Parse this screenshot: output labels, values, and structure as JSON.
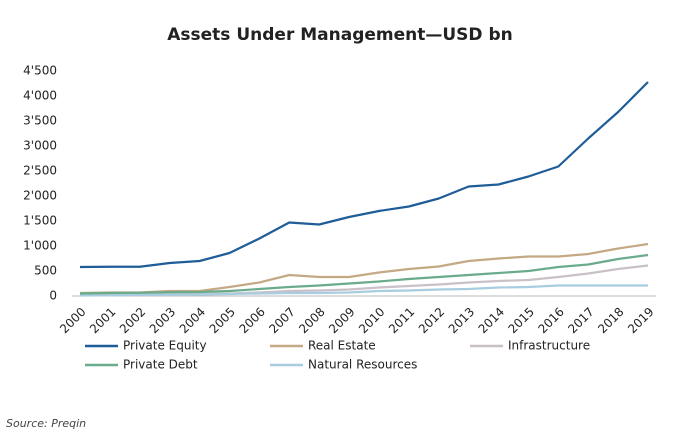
{
  "chart_data": {
    "type": "line",
    "title": "Assets Under Management—USD bn",
    "source": "Source: Preqin",
    "categories": [
      "2000",
      "2001",
      "2002",
      "2003",
      "2004",
      "2005",
      "2006",
      "2007",
      "2008",
      "2009",
      "2010",
      "2011",
      "2012",
      "2013",
      "2014",
      "2015",
      "2016",
      "2017",
      "2018",
      "2019"
    ],
    "series": [
      {
        "name": "Private Equity",
        "color": "#1f5d99",
        "values": [
          580,
          585,
          585,
          660,
          700,
          860,
          1150,
          1470,
          1430,
          1580,
          1700,
          1790,
          1950,
          2190,
          2230,
          2390,
          2590,
          3150,
          3680,
          4280
        ]
      },
      {
        "name": "Real Estate",
        "color": "#c4a984",
        "values": [
          60,
          70,
          70,
          100,
          100,
          180,
          270,
          420,
          380,
          380,
          470,
          540,
          590,
          700,
          750,
          790,
          790,
          840,
          950,
          1040
        ]
      },
      {
        "name": "Infrastructure",
        "color": "#c9c0c8",
        "values": [
          20,
          25,
          30,
          35,
          40,
          50,
          70,
          100,
          110,
          130,
          170,
          200,
          230,
          270,
          300,
          320,
          380,
          450,
          540,
          610
        ]
      },
      {
        "name": "Private Debt",
        "color": "#6aab8b",
        "values": [
          50,
          60,
          65,
          75,
          80,
          100,
          140,
          180,
          210,
          250,
          290,
          340,
          380,
          420,
          460,
          500,
          580,
          630,
          740,
          820
        ]
      },
      {
        "name": "Natural Resources",
        "color": "#a9cde0",
        "values": [
          10,
          15,
          20,
          25,
          30,
          40,
          50,
          60,
          60,
          70,
          100,
          110,
          130,
          140,
          170,
          180,
          210,
          210,
          210,
          210
        ]
      }
    ],
    "ylim": [
      0,
      4500
    ],
    "yticks": [
      0,
      500,
      {
        "value": 1000,
        "label": "1'000"
      },
      {
        "value": 1500,
        "label": "1'500"
      },
      {
        "value": 2000,
        "label": "2'000"
      },
      {
        "value": 2500,
        "label": "2'500"
      },
      {
        "value": 3000,
        "label": "3'000"
      },
      {
        "value": 3500,
        "label": "3'500"
      },
      {
        "value": 4000,
        "label": "4'000"
      },
      {
        "value": 4500,
        "label": "4'500"
      }
    ],
    "grid": false
  }
}
